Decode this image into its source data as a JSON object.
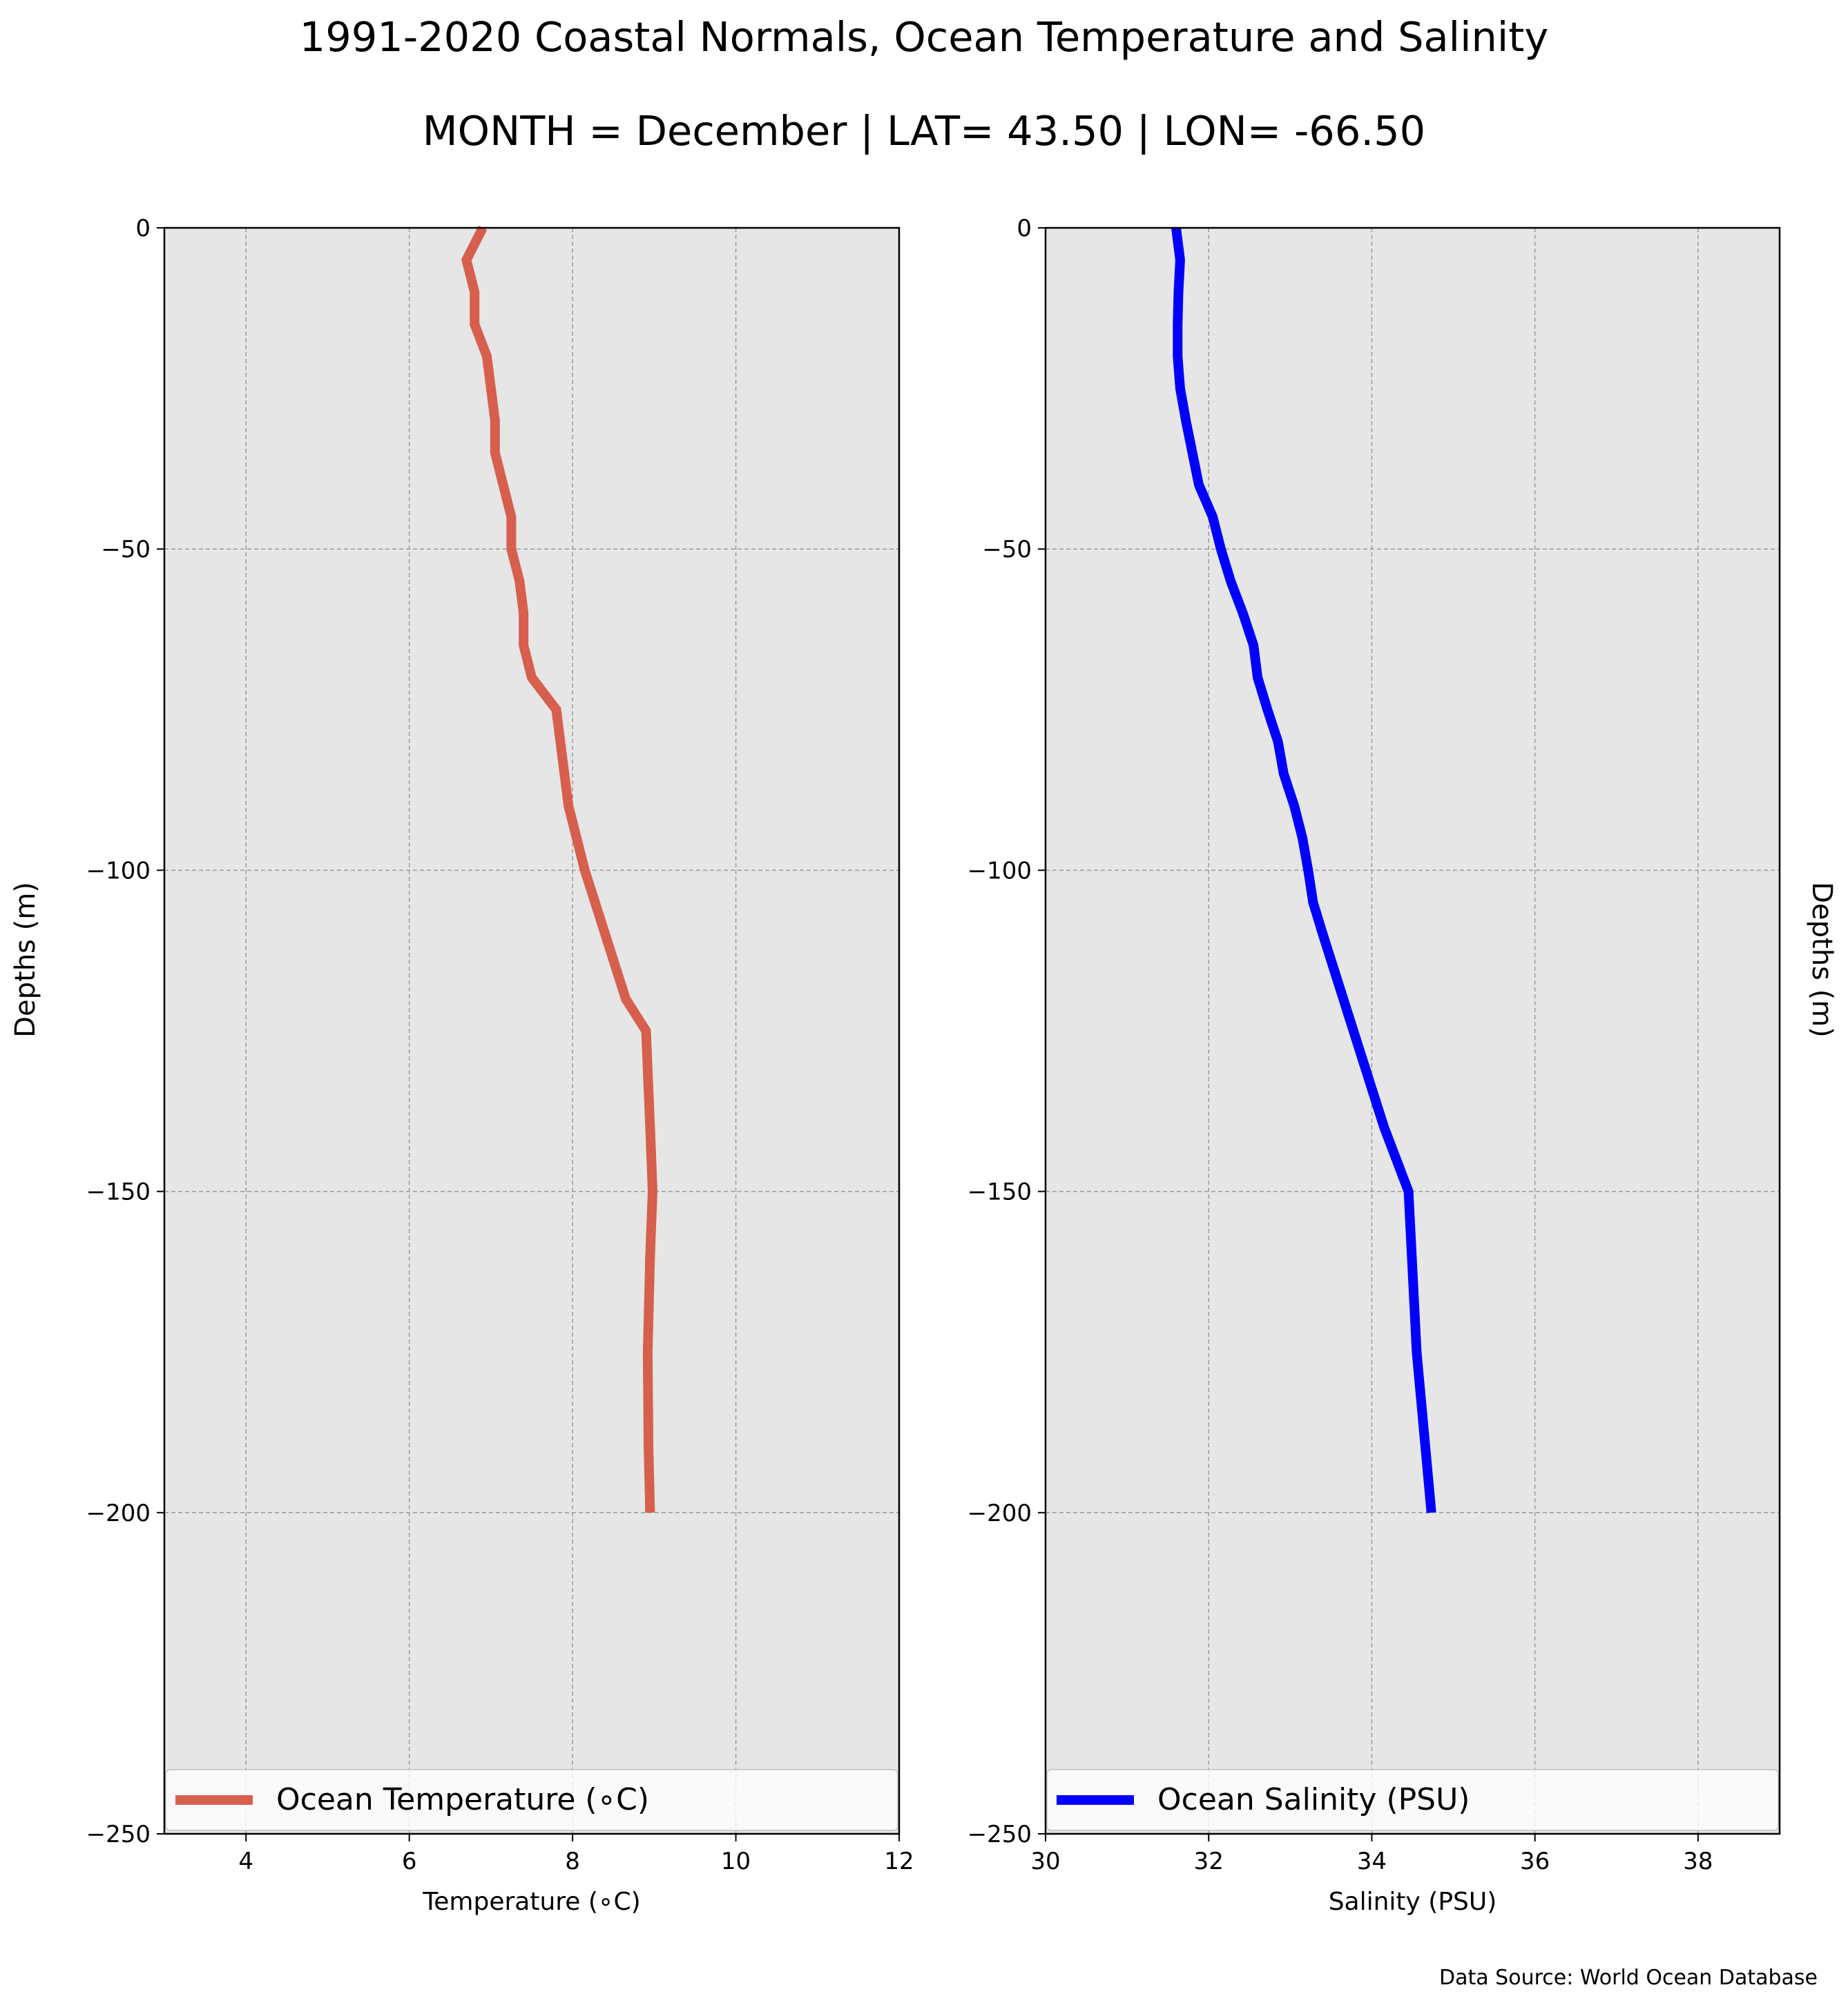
{
  "title": "1991-2020 Coastal Normals, Ocean Temperature and Salinity",
  "subtitle": "MONTH = December | LAT= 43.50 | LON= -66.50",
  "source_note": "Data Source: World Ocean Database",
  "chart_data": [
    {
      "type": "line",
      "orientation": "vertical-profile",
      "xlabel": "Temperature ($^\\circ$C)",
      "xlabel_display": "Temperature (∘C)",
      "ylabel": "Depths (m)",
      "xlim": [
        3,
        12
      ],
      "ylim": [
        -250,
        0
      ],
      "xticks": [
        4,
        6,
        8,
        10,
        12
      ],
      "yticks": [
        0,
        -50,
        -100,
        -150,
        -200,
        -250
      ],
      "ytick_labels": [
        "0",
        "−50",
        "−100",
        "−150",
        "−200",
        "−250"
      ],
      "grid": true,
      "legend_position": "bottom",
      "series": [
        {
          "name": "Ocean Temperature (∘C)",
          "color": "#d65f4e",
          "x": [
            6.9,
            6.7,
            6.8,
            6.8,
            6.95,
            7.0,
            7.05,
            7.05,
            7.15,
            7.25,
            7.25,
            7.25,
            7.35,
            7.4,
            7.4,
            7.5,
            7.8,
            7.85,
            7.9,
            7.95,
            8.05,
            8.15,
            8.4,
            8.65,
            8.9,
            8.95,
            8.98,
            8.95,
            8.92,
            8.93,
            8.95
          ],
          "y": [
            0,
            -5,
            -10,
            -15,
            -20,
            -25,
            -30,
            -35,
            -40,
            -45,
            -50,
            -50,
            -55,
            -60,
            -65,
            -70,
            -75,
            -80,
            -85,
            -90,
            -95,
            -100,
            -110,
            -120,
            -125,
            -140,
            -150,
            -160,
            -175,
            -190,
            -200
          ]
        }
      ]
    },
    {
      "type": "line",
      "orientation": "vertical-profile",
      "xlabel": "Salinity (PSU)",
      "ylabel": "Depths (m)",
      "ylabel_side": "right",
      "xlim": [
        30,
        39
      ],
      "ylim": [
        -250,
        0
      ],
      "xticks": [
        30,
        32,
        34,
        36,
        38
      ],
      "yticks": [
        0,
        -50,
        -100,
        -150,
        -200,
        -250
      ],
      "ytick_labels": [
        "0",
        "−50",
        "−100",
        "−150",
        "−200",
        "−250"
      ],
      "grid": true,
      "legend_position": "bottom",
      "series": [
        {
          "name": "Ocean Salinity (PSU)",
          "color": "#0000ff",
          "x": [
            31.6,
            31.65,
            31.63,
            31.62,
            31.62,
            31.65,
            31.72,
            31.8,
            31.88,
            32.05,
            32.15,
            32.27,
            32.42,
            32.55,
            32.6,
            32.72,
            32.85,
            32.92,
            33.05,
            33.15,
            33.22,
            33.28,
            33.4,
            33.65,
            33.9,
            34.15,
            34.45,
            34.55,
            34.73
          ],
          "y": [
            0,
            -5,
            -10,
            -15,
            -20,
            -25,
            -30,
            -35,
            -40,
            -45,
            -50,
            -55,
            -60,
            -65,
            -70,
            -75,
            -80,
            -85,
            -90,
            -95,
            -100,
            -105,
            -110,
            -120,
            -130,
            -140,
            -150,
            -175,
            -200
          ]
        }
      ]
    }
  ]
}
